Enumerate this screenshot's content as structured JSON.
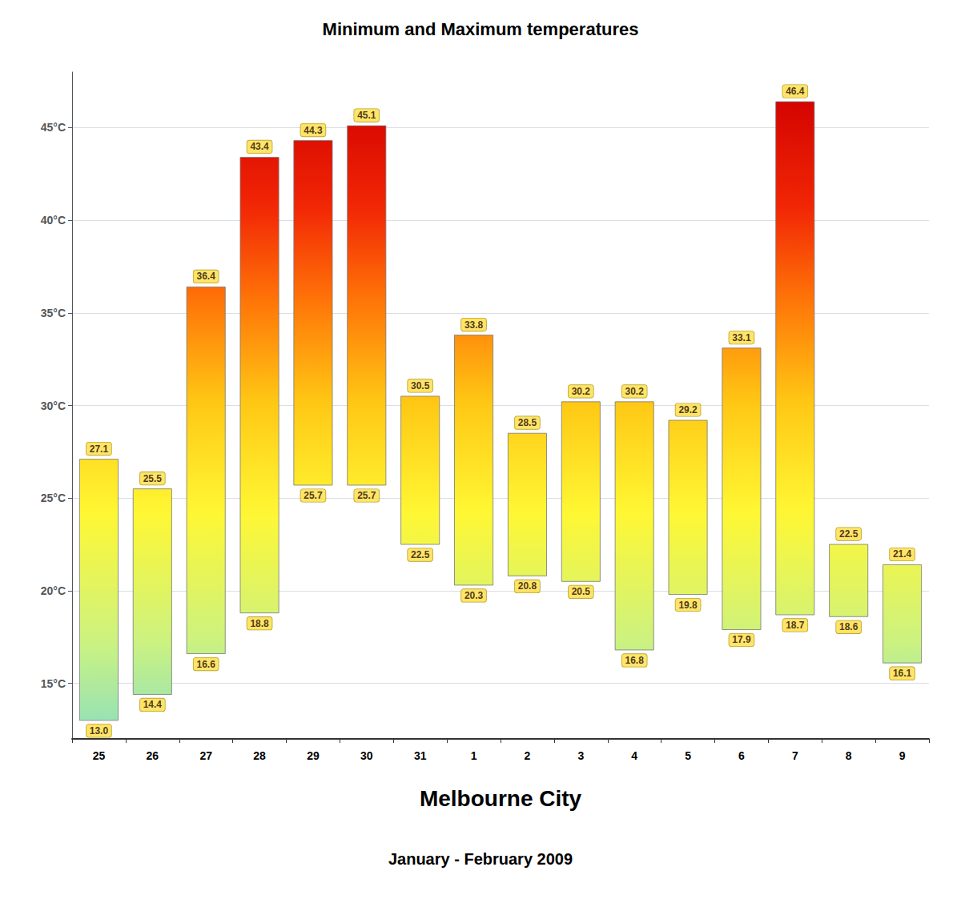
{
  "chart_data": {
    "type": "range_bar",
    "title": "Minimum and Maximum temperatures",
    "xlabel": "Melbourne City",
    "annotations": [
      "January - February 2009"
    ],
    "categories": [
      "25",
      "26",
      "27",
      "28",
      "29",
      "30",
      "31",
      "1",
      "2",
      "3",
      "4",
      "5",
      "6",
      "7",
      "8",
      "9"
    ],
    "values": [
      [
        13.0,
        27.1
      ],
      [
        14.4,
        25.5
      ],
      [
        16.6,
        36.4
      ],
      [
        18.8,
        43.4
      ],
      [
        25.7,
        44.3
      ],
      [
        25.7,
        45.1
      ],
      [
        22.5,
        30.5
      ],
      [
        20.3,
        33.8
      ],
      [
        20.8,
        28.5
      ],
      [
        20.5,
        30.2
      ],
      [
        16.8,
        30.2
      ],
      [
        19.8,
        29.2
      ],
      [
        17.9,
        33.1
      ],
      [
        18.7,
        46.4
      ],
      [
        18.6,
        22.5
      ],
      [
        16.1,
        21.4
      ]
    ],
    "value_labels": [
      [
        "13.0",
        "27.1"
      ],
      [
        "14.4",
        "25.5"
      ],
      [
        "16.6",
        "36.4"
      ],
      [
        "18.8",
        "43.4"
      ],
      [
        "25.7",
        "44.3"
      ],
      [
        "25.7",
        "45.1"
      ],
      [
        "22.5",
        "30.5"
      ],
      [
        "20.3",
        "33.8"
      ],
      [
        "20.8",
        "28.5"
      ],
      [
        "20.5",
        "30.2"
      ],
      [
        "16.8",
        "30.2"
      ],
      [
        "19.8",
        "29.2"
      ],
      [
        "17.9",
        "33.1"
      ],
      [
        "18.7",
        "46.4"
      ],
      [
        "18.6",
        "22.5"
      ],
      [
        "16.1",
        "21.4"
      ]
    ],
    "data_labels": true,
    "ylim": [
      12,
      48
    ],
    "yticks": [
      {
        "value": 15,
        "label": "15°C"
      },
      {
        "value": 20,
        "label": "20°C"
      },
      {
        "value": 25,
        "label": "25°C"
      },
      {
        "value": 30,
        "label": "30°C"
      },
      {
        "value": 35,
        "label": "35°C"
      },
      {
        "value": 40,
        "label": "40°C"
      },
      {
        "value": 45,
        "label": "45°C"
      }
    ],
    "grid": true,
    "color_scale": {
      "range": [
        12,
        47
      ],
      "stops": [
        0.0,
        0.15,
        0.35,
        0.52,
        0.68,
        0.82,
        1.0
      ],
      "colors": [
        "#8ce0bf",
        "#ccf280",
        "#fff733",
        "#ffc714",
        "#ff7308",
        "#f22605",
        "#d10000"
      ]
    }
  }
}
